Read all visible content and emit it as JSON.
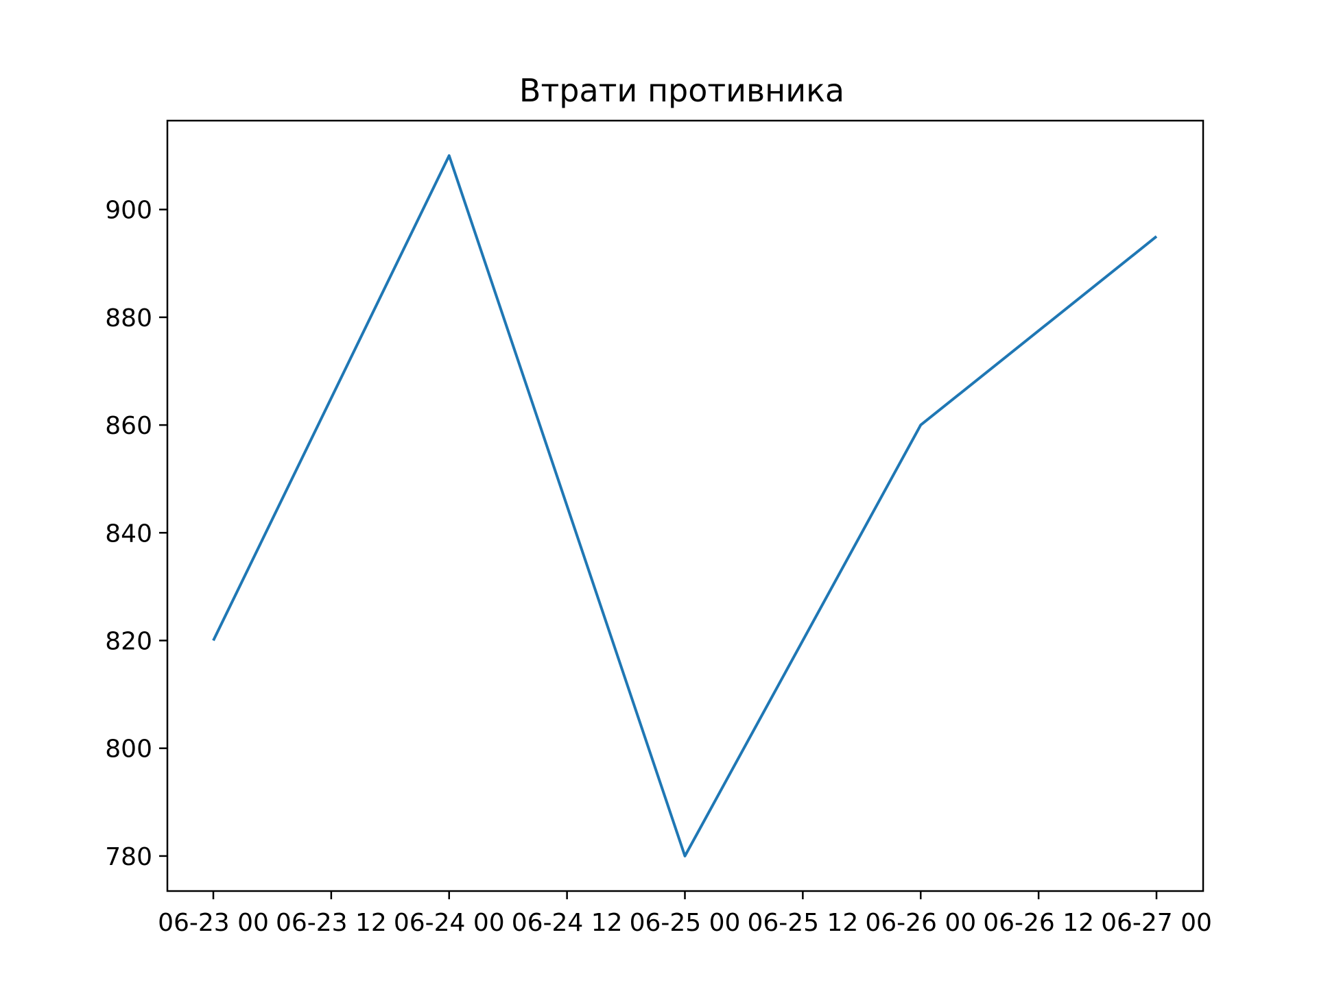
{
  "chart_data": {
    "type": "line",
    "title": "Втрати противника",
    "xlabel": "",
    "ylabel": "",
    "x": [
      "06-23 00",
      "06-24 00",
      "06-25 00",
      "06-26 00",
      "06-27 00"
    ],
    "x_ticks": [
      "06-23 00",
      "06-23 12",
      "06-24 00",
      "06-24 12",
      "06-25 00",
      "06-25 12",
      "06-26 00",
      "06-26 12",
      "06-27 00"
    ],
    "y_ticks": [
      780,
      800,
      820,
      840,
      860,
      880,
      900
    ],
    "ylim": [
      773.5,
      916.5
    ],
    "series": [
      {
        "values": [
          820,
          910,
          780,
          860,
          895
        ],
        "color": "#1f77b4"
      }
    ],
    "grid": false,
    "legend": "none"
  }
}
